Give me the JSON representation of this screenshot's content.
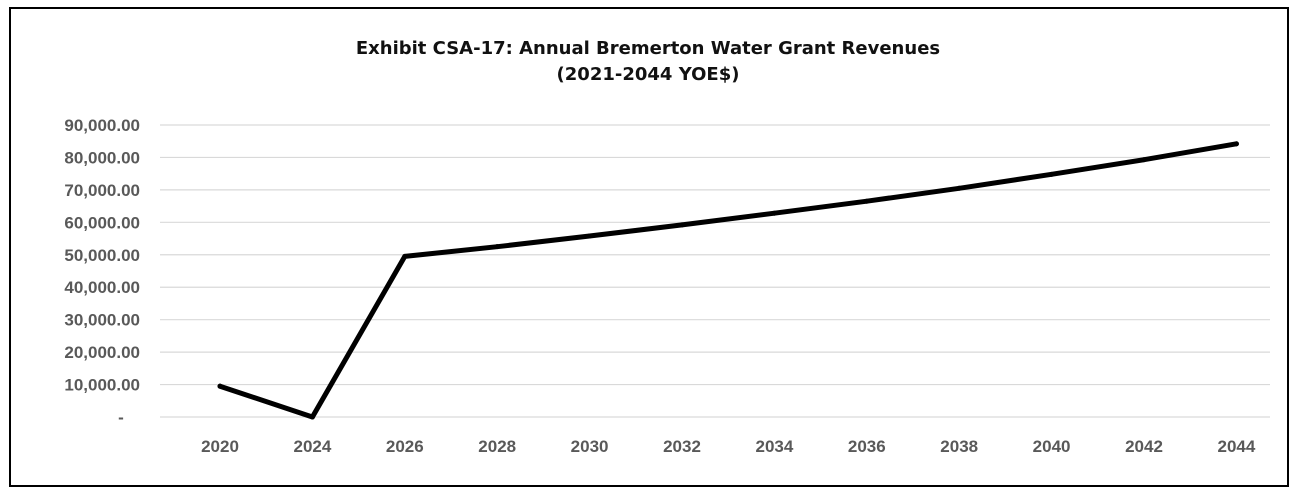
{
  "chart_data": {
    "type": "line",
    "title": "Exhibit CSA-17: Annual Bremerton Water Grant Revenues",
    "subtitle": "(2021-2044 YOE$)",
    "xlabel": "",
    "ylabel": "",
    "categories": [
      "2020",
      "2024",
      "2026",
      "2028",
      "2030",
      "2032",
      "2034",
      "2036",
      "2038",
      "2040",
      "2042",
      "2044"
    ],
    "series": [
      {
        "values": [
          9500,
          0,
          49500,
          52500,
          55800,
          59200,
          62800,
          66500,
          70500,
          74800,
          79300,
          84200
        ]
      }
    ],
    "ylim": [
      0,
      90000
    ],
    "yticks": [
      0,
      10000,
      20000,
      30000,
      40000,
      50000,
      60000,
      70000,
      80000,
      90000
    ],
    "ytick_labels": [
      "-",
      "10,000.00",
      "20,000.00",
      "30,000.00",
      "40,000.00",
      "50,000.00",
      "60,000.00",
      "70,000.00",
      "80,000.00",
      "90,000.00"
    ],
    "grid": true,
    "legend": "none",
    "colors": {
      "line": "#000000",
      "grid": "#d9d9d9",
      "tick_text": "#595959",
      "title_text": "#111111"
    }
  }
}
